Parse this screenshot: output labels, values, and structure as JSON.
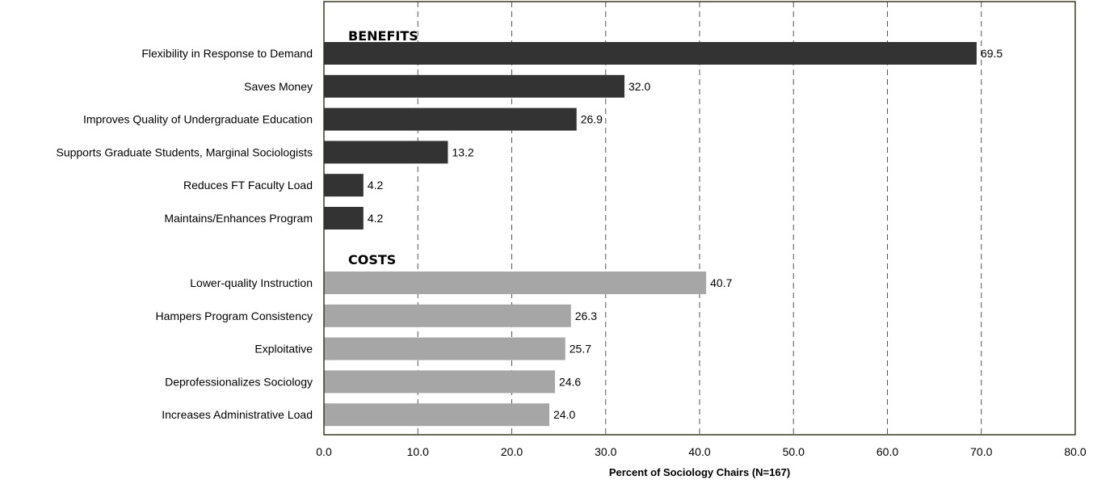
{
  "chart_data": {
    "type": "bar",
    "orientation": "horizontal",
    "xlabel": "Percent of Sociology Chairs (N=167)",
    "xlim": [
      0,
      80
    ],
    "ticks": [
      "0.0",
      "10.0",
      "20.0",
      "30.0",
      "40.0",
      "50.0",
      "60.0",
      "70.0",
      "80.0"
    ],
    "grid": true,
    "groups": [
      {
        "label": "BENEFITS",
        "color": "#333333",
        "categories": [
          "Flexibility in Response to Demand",
          "Saves Money",
          "Improves Quality of Undergraduate Education",
          "Supports Graduate Students, Marginal Sociologists",
          "Reduces FT Faculty Load",
          "Maintains/Enhances Program"
        ],
        "values": [
          69.5,
          32.0,
          26.9,
          13.2,
          4.2,
          4.2
        ],
        "value_labels": [
          "69.5",
          "32.0",
          "26.9",
          "13.2",
          "4.2",
          "4.2"
        ]
      },
      {
        "label": "COSTS",
        "color": "#a6a6a6",
        "categories": [
          "Lower-quality Instruction",
          "Hampers Program Consistency",
          "Exploitative",
          "Deprofessionalizes Sociology",
          "Increases Administrative Load"
        ],
        "values": [
          40.7,
          26.3,
          25.7,
          24.6,
          24.0
        ],
        "value_labels": [
          "40.7",
          "26.3",
          "25.7",
          "24.6",
          "24.0"
        ]
      }
    ],
    "colors": {
      "frame": "#3a3a1a",
      "grid": "#555555"
    }
  }
}
